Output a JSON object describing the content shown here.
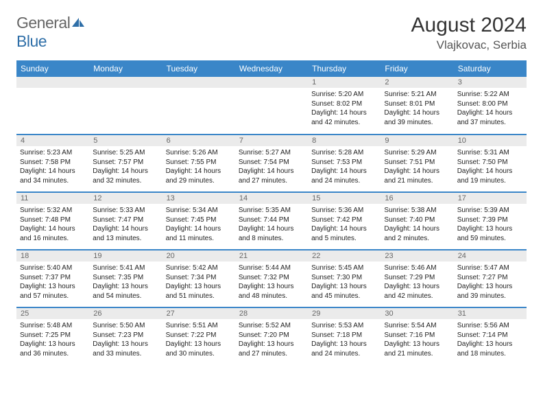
{
  "brand": {
    "part1": "General",
    "part2": "Blue"
  },
  "title": "August 2024",
  "location": "Vlajkovac, Serbia",
  "colors": {
    "header_bg": "#3a86c8",
    "header_text": "#ffffff",
    "daynum_bg": "#ebebeb",
    "border": "#3a86c8"
  },
  "weekdays": [
    "Sunday",
    "Monday",
    "Tuesday",
    "Wednesday",
    "Thursday",
    "Friday",
    "Saturday"
  ],
  "weeks": [
    [
      {
        "n": ""
      },
      {
        "n": ""
      },
      {
        "n": ""
      },
      {
        "n": ""
      },
      {
        "n": "1",
        "sr": "Sunrise: 5:20 AM",
        "ss": "Sunset: 8:02 PM",
        "dl": "Daylight: 14 hours and 42 minutes."
      },
      {
        "n": "2",
        "sr": "Sunrise: 5:21 AM",
        "ss": "Sunset: 8:01 PM",
        "dl": "Daylight: 14 hours and 39 minutes."
      },
      {
        "n": "3",
        "sr": "Sunrise: 5:22 AM",
        "ss": "Sunset: 8:00 PM",
        "dl": "Daylight: 14 hours and 37 minutes."
      }
    ],
    [
      {
        "n": "4",
        "sr": "Sunrise: 5:23 AM",
        "ss": "Sunset: 7:58 PM",
        "dl": "Daylight: 14 hours and 34 minutes."
      },
      {
        "n": "5",
        "sr": "Sunrise: 5:25 AM",
        "ss": "Sunset: 7:57 PM",
        "dl": "Daylight: 14 hours and 32 minutes."
      },
      {
        "n": "6",
        "sr": "Sunrise: 5:26 AM",
        "ss": "Sunset: 7:55 PM",
        "dl": "Daylight: 14 hours and 29 minutes."
      },
      {
        "n": "7",
        "sr": "Sunrise: 5:27 AM",
        "ss": "Sunset: 7:54 PM",
        "dl": "Daylight: 14 hours and 27 minutes."
      },
      {
        "n": "8",
        "sr": "Sunrise: 5:28 AM",
        "ss": "Sunset: 7:53 PM",
        "dl": "Daylight: 14 hours and 24 minutes."
      },
      {
        "n": "9",
        "sr": "Sunrise: 5:29 AM",
        "ss": "Sunset: 7:51 PM",
        "dl": "Daylight: 14 hours and 21 minutes."
      },
      {
        "n": "10",
        "sr": "Sunrise: 5:31 AM",
        "ss": "Sunset: 7:50 PM",
        "dl": "Daylight: 14 hours and 19 minutes."
      }
    ],
    [
      {
        "n": "11",
        "sr": "Sunrise: 5:32 AM",
        "ss": "Sunset: 7:48 PM",
        "dl": "Daylight: 14 hours and 16 minutes."
      },
      {
        "n": "12",
        "sr": "Sunrise: 5:33 AM",
        "ss": "Sunset: 7:47 PM",
        "dl": "Daylight: 14 hours and 13 minutes."
      },
      {
        "n": "13",
        "sr": "Sunrise: 5:34 AM",
        "ss": "Sunset: 7:45 PM",
        "dl": "Daylight: 14 hours and 11 minutes."
      },
      {
        "n": "14",
        "sr": "Sunrise: 5:35 AM",
        "ss": "Sunset: 7:44 PM",
        "dl": "Daylight: 14 hours and 8 minutes."
      },
      {
        "n": "15",
        "sr": "Sunrise: 5:36 AM",
        "ss": "Sunset: 7:42 PM",
        "dl": "Daylight: 14 hours and 5 minutes."
      },
      {
        "n": "16",
        "sr": "Sunrise: 5:38 AM",
        "ss": "Sunset: 7:40 PM",
        "dl": "Daylight: 14 hours and 2 minutes."
      },
      {
        "n": "17",
        "sr": "Sunrise: 5:39 AM",
        "ss": "Sunset: 7:39 PM",
        "dl": "Daylight: 13 hours and 59 minutes."
      }
    ],
    [
      {
        "n": "18",
        "sr": "Sunrise: 5:40 AM",
        "ss": "Sunset: 7:37 PM",
        "dl": "Daylight: 13 hours and 57 minutes."
      },
      {
        "n": "19",
        "sr": "Sunrise: 5:41 AM",
        "ss": "Sunset: 7:35 PM",
        "dl": "Daylight: 13 hours and 54 minutes."
      },
      {
        "n": "20",
        "sr": "Sunrise: 5:42 AM",
        "ss": "Sunset: 7:34 PM",
        "dl": "Daylight: 13 hours and 51 minutes."
      },
      {
        "n": "21",
        "sr": "Sunrise: 5:44 AM",
        "ss": "Sunset: 7:32 PM",
        "dl": "Daylight: 13 hours and 48 minutes."
      },
      {
        "n": "22",
        "sr": "Sunrise: 5:45 AM",
        "ss": "Sunset: 7:30 PM",
        "dl": "Daylight: 13 hours and 45 minutes."
      },
      {
        "n": "23",
        "sr": "Sunrise: 5:46 AM",
        "ss": "Sunset: 7:29 PM",
        "dl": "Daylight: 13 hours and 42 minutes."
      },
      {
        "n": "24",
        "sr": "Sunrise: 5:47 AM",
        "ss": "Sunset: 7:27 PM",
        "dl": "Daylight: 13 hours and 39 minutes."
      }
    ],
    [
      {
        "n": "25",
        "sr": "Sunrise: 5:48 AM",
        "ss": "Sunset: 7:25 PM",
        "dl": "Daylight: 13 hours and 36 minutes."
      },
      {
        "n": "26",
        "sr": "Sunrise: 5:50 AM",
        "ss": "Sunset: 7:23 PM",
        "dl": "Daylight: 13 hours and 33 minutes."
      },
      {
        "n": "27",
        "sr": "Sunrise: 5:51 AM",
        "ss": "Sunset: 7:22 PM",
        "dl": "Daylight: 13 hours and 30 minutes."
      },
      {
        "n": "28",
        "sr": "Sunrise: 5:52 AM",
        "ss": "Sunset: 7:20 PM",
        "dl": "Daylight: 13 hours and 27 minutes."
      },
      {
        "n": "29",
        "sr": "Sunrise: 5:53 AM",
        "ss": "Sunset: 7:18 PM",
        "dl": "Daylight: 13 hours and 24 minutes."
      },
      {
        "n": "30",
        "sr": "Sunrise: 5:54 AM",
        "ss": "Sunset: 7:16 PM",
        "dl": "Daylight: 13 hours and 21 minutes."
      },
      {
        "n": "31",
        "sr": "Sunrise: 5:56 AM",
        "ss": "Sunset: 7:14 PM",
        "dl": "Daylight: 13 hours and 18 minutes."
      }
    ]
  ]
}
